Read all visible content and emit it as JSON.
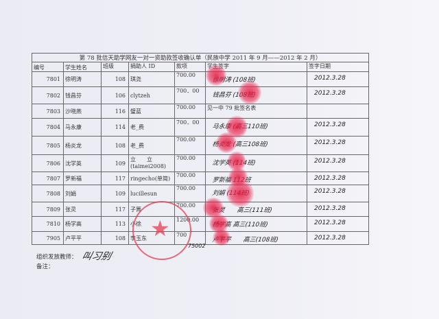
{
  "form": {
    "title": "第 78 批信天助学网友一对一资助款签收确认单（民族中学 2011 年 9 月——2012 年 2 月）",
    "headers": [
      "编号",
      "学生姓名",
      "班级",
      "捐助人 ID",
      "款项",
      "学生签字",
      "签字日期"
    ],
    "rows": [
      {
        "id": "7801",
        "name": "徐明涛",
        "class": "108",
        "donor": "琪尧",
        "amount": "700.00",
        "signature": "徐明涛 (108班)",
        "date": "2012.3.28"
      },
      {
        "id": "7802",
        "name": "钱昌芬",
        "class": "106",
        "donor": "clytzeh",
        "amount": "700．00",
        "signature": "钱昌芬 (108班)",
        "date": "2012.3.28"
      },
      {
        "id": "7803",
        "name": "沙晓燕",
        "class": "116",
        "donor": "璧蓝",
        "amount": "700.00",
        "signature": "见一中 79 批签名表",
        "date": ""
      },
      {
        "id": "7804",
        "name": "马永康",
        "class": "114",
        "donor": "老_费",
        "amount": "700．00",
        "signature": "马永康 (高三110班)",
        "date": "2012.3.28"
      },
      {
        "id": "7805",
        "name": "杨炎龙",
        "class": "108",
        "donor": "老_费",
        "amount": "700.00",
        "signature": "杨炎龙 (高三108班)",
        "date": "2012.3.28"
      },
      {
        "id": "7806",
        "name": "沈学英",
        "class": "109",
        "donor": "立　　立 (taimei2008)",
        "amount": "700.00",
        "signature": "沈学英 (114班)",
        "date": "2012.3.28"
      },
      {
        "id": "7807",
        "name": "罗新福",
        "class": "117",
        "donor": "ringecho(单简)",
        "amount": "700.00",
        "signature": "罗新福 112班",
        "date": "2012.3.28"
      },
      {
        "id": "7808",
        "name": "刘娟",
        "class": "109",
        "donor": "lucillesun",
        "amount": "700.00",
        "signature": "刘娟 (114班)",
        "date": "2012.3.28"
      },
      {
        "id": "7809",
        "name": "张灵",
        "class": "117",
        "donor": "子箐",
        "amount": "700.00",
        "signature": "张灵　　高三(111班)",
        "date": "2012.3.28"
      },
      {
        "id": "7810",
        "name": "杨学高",
        "class": "113",
        "donor": "小徐",
        "amount": "1200.00",
        "signature": "杨学高 高三(110班)",
        "date": "2012.3.28"
      },
      {
        "id": "7905",
        "name": "卢平平",
        "class": "108",
        "donor": "李玉东",
        "amount": "700",
        "signature": "卢平平　　高三(108班)",
        "date": "2012.3.28"
      }
    ]
  },
  "footer": {
    "teacher_label": "组织发放教师：",
    "teacher_signature": "叫习别",
    "remarks_label": "备注：",
    "handwritten_note": "75002"
  },
  "stamp": {
    "text": "云南宁蒗民族中学",
    "color": "#e03c50"
  },
  "colors": {
    "fingerprint": "#e6143c",
    "paper": "#efeff6"
  }
}
